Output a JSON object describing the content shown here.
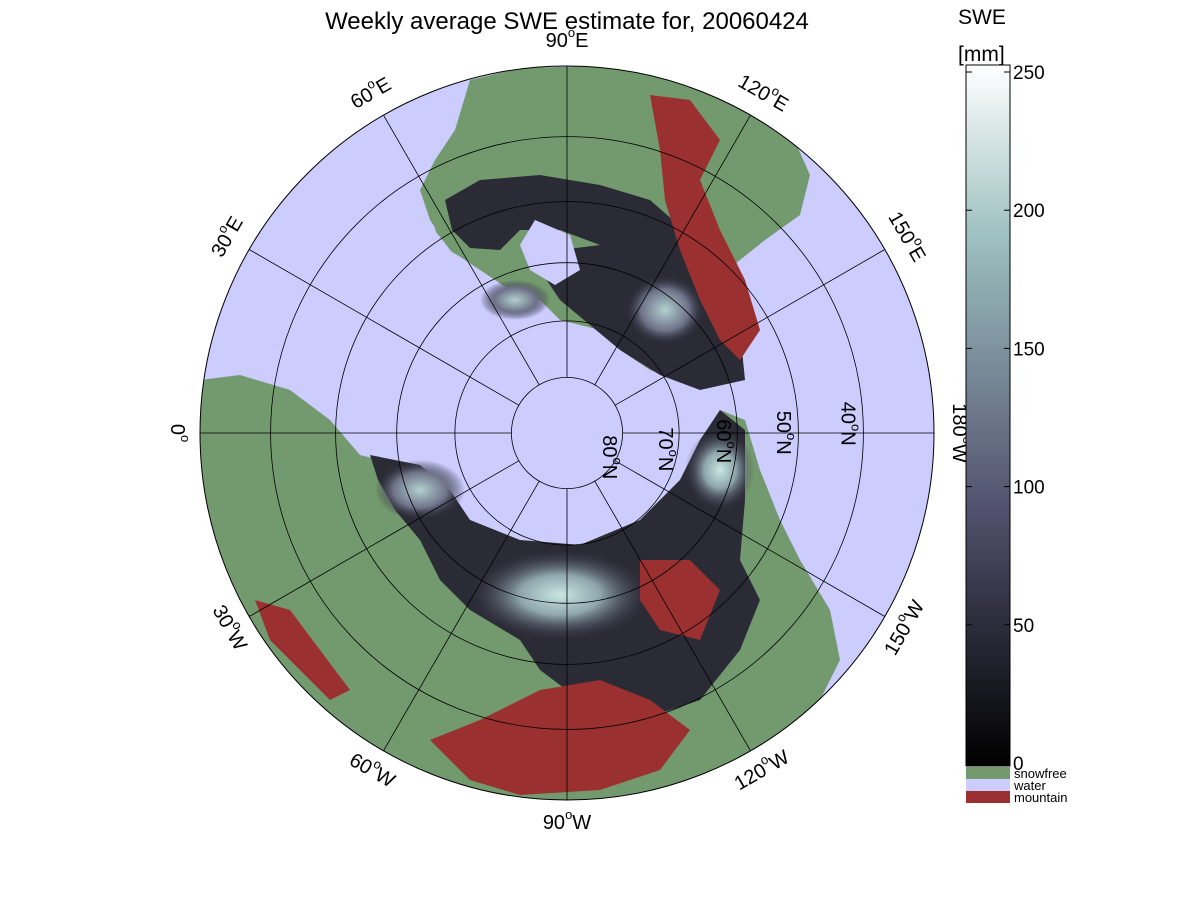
{
  "title": "Weekly average SWE estimate for, 20060424",
  "colors": {
    "water": "#ccccff",
    "snowfree": "#739a6e",
    "mountain": "#9b3030",
    "frame": "#000000"
  },
  "map": {
    "projection": "north-polar-stereographic",
    "longitude_labels": [
      {
        "name": "lon-label-90w",
        "text": "90°W",
        "base": "90",
        "sup": "o",
        "tail": "W"
      },
      {
        "name": "lon-label-120w",
        "text": "120°W",
        "base": "120",
        "sup": "o",
        "tail": "W"
      },
      {
        "name": "lon-label-150w",
        "text": "150°W",
        "base": "150",
        "sup": "o",
        "tail": "W"
      },
      {
        "name": "lon-label-180w",
        "text": "180°W",
        "base": "180",
        "sup": "o",
        "tail": "W"
      },
      {
        "name": "lon-label-150e",
        "text": "150°E",
        "base": "150",
        "sup": "o",
        "tail": "E"
      },
      {
        "name": "lon-label-120e",
        "text": "120°E",
        "base": "120",
        "sup": "o",
        "tail": "E"
      },
      {
        "name": "lon-label-90e",
        "text": "90°E",
        "base": "90",
        "sup": "o",
        "tail": "E"
      },
      {
        "name": "lon-label-60e",
        "text": "60°E",
        "base": "60",
        "sup": "o",
        "tail": "E"
      },
      {
        "name": "lon-label-30e",
        "text": "30°E",
        "base": "30",
        "sup": "o",
        "tail": "E"
      },
      {
        "name": "lon-label-0",
        "text": "0°",
        "base": "0",
        "sup": "o",
        "tail": ""
      },
      {
        "name": "lon-label-30w",
        "text": "30°W",
        "base": "30",
        "sup": "o",
        "tail": "W"
      },
      {
        "name": "lon-label-60w",
        "text": "60°W",
        "base": "60",
        "sup": "o",
        "tail": "W"
      }
    ],
    "latitude_labels": [
      {
        "name": "lat-label-80n",
        "text": "80°N",
        "base": "80",
        "sup": "o",
        "tail": "N"
      },
      {
        "name": "lat-label-70n",
        "text": "70°N",
        "base": "70",
        "sup": "o",
        "tail": "N"
      },
      {
        "name": "lat-label-60n",
        "text": "60°N",
        "base": "60",
        "sup": "o",
        "tail": "N"
      },
      {
        "name": "lat-label-50n",
        "text": "50°N",
        "base": "50",
        "sup": "o",
        "tail": "N"
      },
      {
        "name": "lat-label-40n",
        "text": "40°N",
        "base": "40",
        "sup": "o",
        "tail": "N"
      }
    ],
    "latitude_circles": [
      80,
      70,
      60,
      50,
      40
    ],
    "meridian_step_deg": 30
  },
  "colorbar": {
    "title_line1": "SWE",
    "title_line2": "[mm]",
    "min": 0,
    "max": 250,
    "ticks": [
      "0",
      "50",
      "100",
      "150",
      "200",
      "250"
    ],
    "colormap": "bone",
    "legend": [
      {
        "label": "snowfree",
        "color": "#739a6e"
      },
      {
        "label": "water",
        "color": "#ccccff"
      },
      {
        "label": "mountain",
        "color": "#9b3030"
      }
    ]
  }
}
